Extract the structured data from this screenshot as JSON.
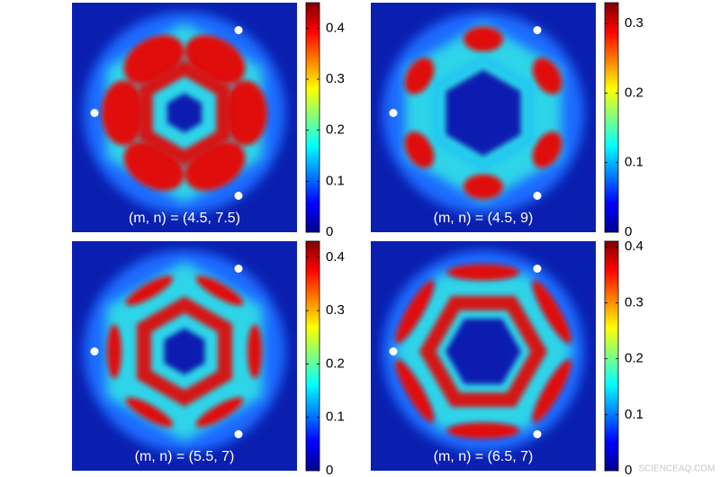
{
  "chart_data": [
    {
      "type": "heatmap",
      "annotation": "(m, n) = (4.5, 7.5)",
      "zlim": [
        0,
        0.45
      ],
      "zticks": [
        0,
        0.1,
        0.2,
        0.3,
        0.4
      ]
    },
    {
      "type": "heatmap",
      "annotation": "(m, n) = (4.5, 9)",
      "zlim": [
        0,
        0.33
      ],
      "zticks": [
        0,
        0.1,
        0.2,
        0.3
      ]
    },
    {
      "type": "heatmap",
      "annotation": "(m, n) = (5.5, 7)",
      "zlim": [
        0,
        0.43
      ],
      "zticks": [
        0,
        0.1,
        0.2,
        0.3,
        0.4
      ]
    },
    {
      "type": "heatmap",
      "annotation": "(m, n) = (6.5, 7)",
      "zlim": [
        0,
        0.41
      ],
      "zticks": [
        0,
        0.1,
        0.2,
        0.3,
        0.4
      ]
    }
  ],
  "watermark": "SCIENCEAQ.COM"
}
